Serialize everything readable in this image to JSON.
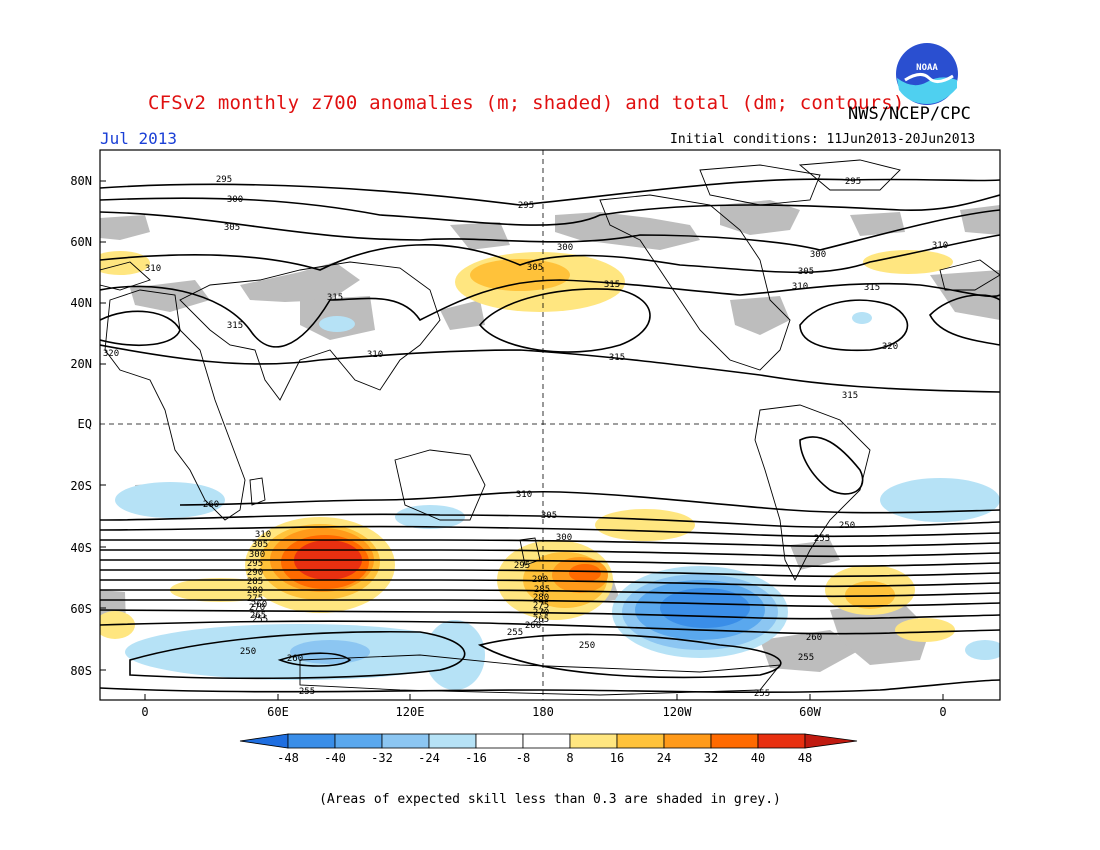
{
  "header": {
    "title": "CFSv2 monthly z700 anomalies (m; shaded) and total (dm; contours)",
    "agency": "NWS/NCEP/CPC",
    "month": "Jul 2013",
    "initial_conditions": "Initial conditions: 11Jun2013-20Jun2013",
    "logo_text": "NOAA"
  },
  "map": {
    "lat_labels": [
      "80N",
      "60N",
      "40N",
      "20N",
      "EQ",
      "20S",
      "40S",
      "60S",
      "80S"
    ],
    "lon_labels": [
      "0",
      "60E",
      "120E",
      "180",
      "120W",
      "60W",
      "0"
    ],
    "contour_labels": [
      "295",
      "300",
      "305",
      "310",
      "315",
      "320",
      "310",
      "315",
      "300",
      "295",
      "295",
      "305",
      "300",
      "315",
      "310",
      "305",
      "315",
      "320",
      "310",
      "315",
      "315",
      "310",
      "305",
      "300",
      "295",
      "290",
      "285",
      "280",
      "275",
      "270",
      "265",
      "260",
      "255",
      "250",
      "310",
      "305",
      "300",
      "295",
      "290",
      "285",
      "280",
      "275",
      "270",
      "265",
      "260",
      "255",
      "250",
      "260",
      "255",
      "260",
      "255",
      "260",
      "255",
      "250",
      "255"
    ]
  },
  "colorbar": {
    "ticks": [
      "-48",
      "-40",
      "-32",
      "-24",
      "-16",
      "-8",
      "8",
      "16",
      "24",
      "32",
      "40",
      "48"
    ],
    "colors": [
      "#1e6ee0",
      "#3a8ee8",
      "#5aa8ee",
      "#8cc6f2",
      "#b6e2f6",
      "#ffffff",
      "#ffe680",
      "#ffc23a",
      "#ff9a1a",
      "#ff6a00",
      "#e83010",
      "#c01a10"
    ]
  },
  "footnote": "(Areas of expected skill less than 0.3 are shaded in grey.)"
}
